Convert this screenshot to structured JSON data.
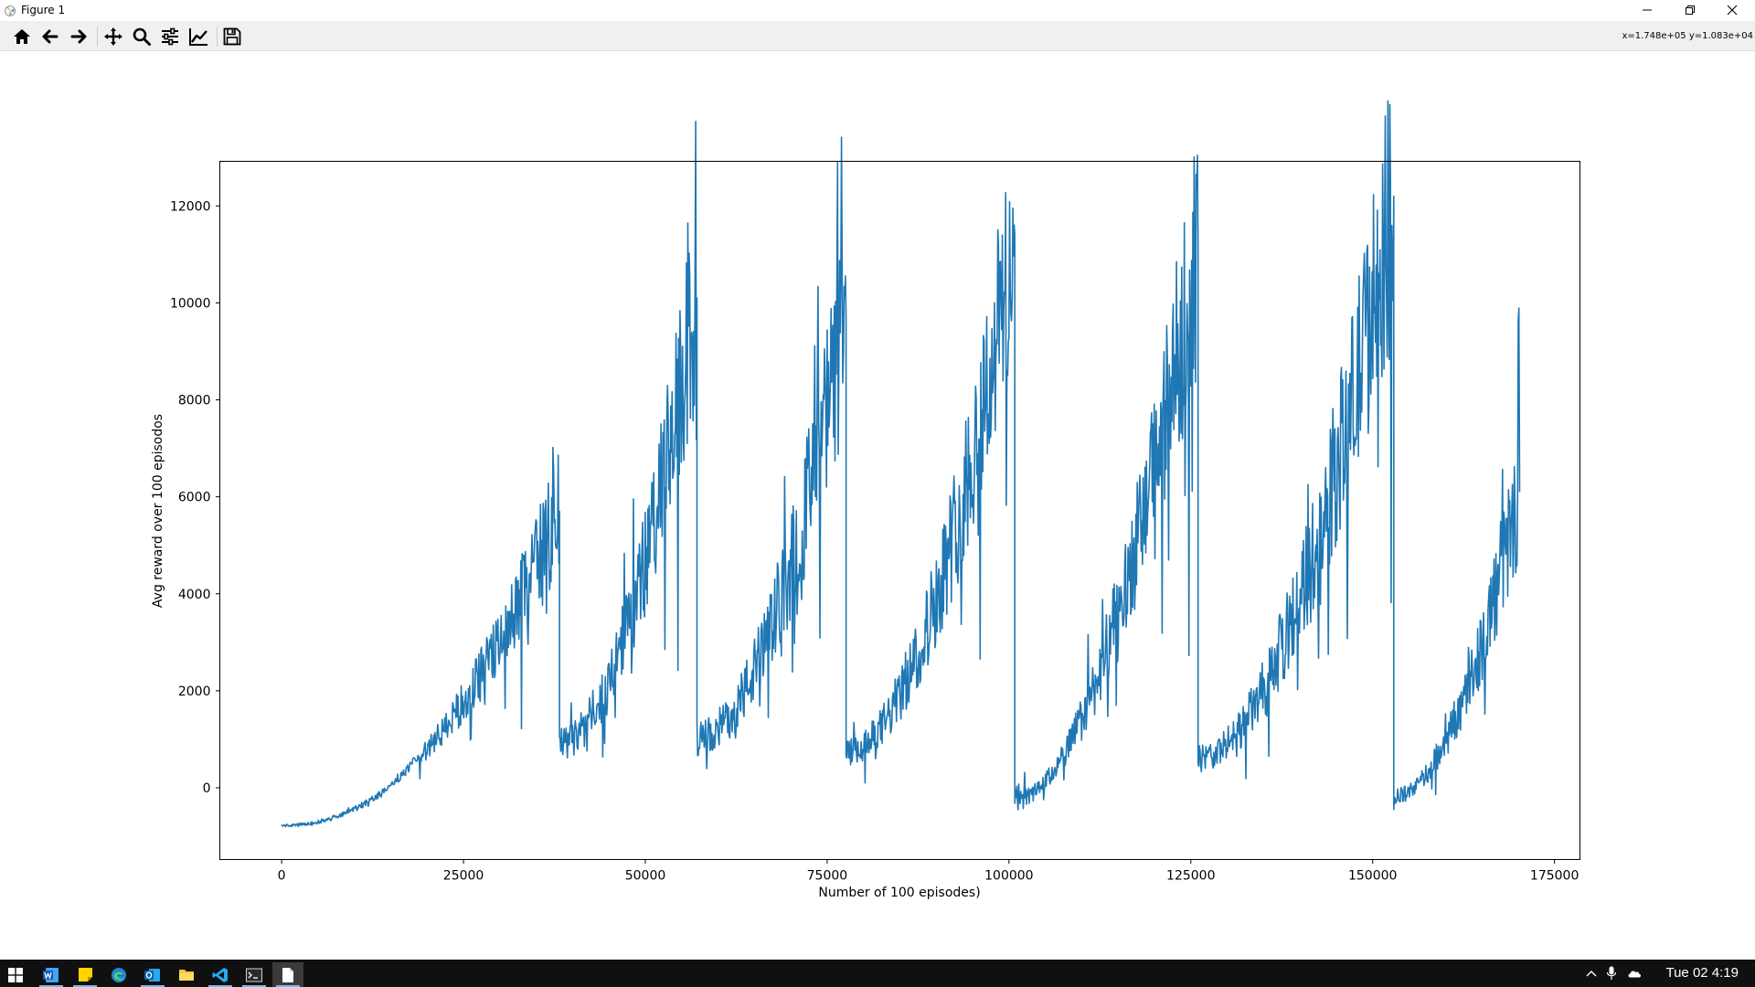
{
  "window": {
    "title": "Figure 1",
    "controls": {
      "minimize": "minimize",
      "restore": "restore",
      "close": "close"
    }
  },
  "toolbar": {
    "buttons": [
      {
        "id": "home",
        "icon": "home-icon"
      },
      {
        "id": "back",
        "icon": "arrow-left-icon"
      },
      {
        "id": "forward",
        "icon": "arrow-right-icon"
      },
      {
        "id": "pan",
        "icon": "move-icon"
      },
      {
        "id": "zoom",
        "icon": "magnifier-icon"
      },
      {
        "id": "subplots",
        "icon": "sliders-icon"
      },
      {
        "id": "axes",
        "icon": "line-chart-icon"
      },
      {
        "id": "save",
        "icon": "floppy-icon"
      }
    ],
    "coordinates": "x=1.748e+05 y=1.083e+04"
  },
  "colors": {
    "line": "#1f77b4",
    "taskbar": "#101010",
    "toolbar": "#f0f0f0"
  },
  "chart_data": {
    "type": "line",
    "title": "",
    "xlabel": "Number of 100 episodes)",
    "ylabel": "Avg reward over 100 episodos",
    "xlim": [
      -8500,
      178500
    ],
    "ylim": [
      -1480,
      12920
    ],
    "xticks": [
      0,
      25000,
      50000,
      75000,
      100000,
      125000,
      150000,
      175000
    ],
    "yticks": [
      0,
      2000,
      4000,
      6000,
      8000,
      10000,
      12000
    ],
    "grid": false,
    "series": [
      {
        "name": "avg_reward",
        "cycles": [
          {
            "x_start": 0,
            "x_end": 38200,
            "y_start": -780,
            "y_end": 5700
          },
          {
            "x_start": 38200,
            "x_end": 57100,
            "y_start": 900,
            "y_end": 10100
          },
          {
            "x_start": 57100,
            "x_end": 77600,
            "y_start": 1000,
            "y_end": 9700
          },
          {
            "x_start": 77600,
            "x_end": 100800,
            "y_start": 700,
            "y_end": 11400
          },
          {
            "x_start": 100800,
            "x_end": 126000,
            "y_start": -250,
            "y_end": 11200
          },
          {
            "x_start": 126000,
            "x_end": 152900,
            "y_start": 600,
            "y_end": 12200
          },
          {
            "x_start": 152900,
            "x_end": 170200,
            "y_start": -200,
            "y_end": 6100
          }
        ]
      }
    ]
  },
  "taskbar": {
    "apps": [
      {
        "id": "start",
        "icon": "windows-start-icon"
      },
      {
        "id": "word",
        "icon": "word-icon"
      },
      {
        "id": "sticky",
        "icon": "sticky-notes-icon"
      },
      {
        "id": "edge",
        "icon": "edge-icon"
      },
      {
        "id": "outlook",
        "icon": "outlook-icon"
      },
      {
        "id": "explorer",
        "icon": "folder-icon"
      },
      {
        "id": "vscode",
        "icon": "vscode-icon"
      },
      {
        "id": "terminal",
        "icon": "terminal-icon"
      },
      {
        "id": "figure",
        "icon": "document-icon"
      }
    ],
    "tray": [
      "chevron-up-icon",
      "microphone-icon",
      "cloud-icon"
    ],
    "clock": "Tue 02 4:19"
  }
}
